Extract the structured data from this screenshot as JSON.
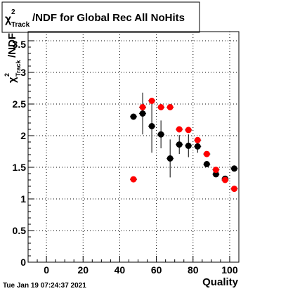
{
  "chart_data": {
    "type": "scatter",
    "title_main": "/NDF for Global Rec All NoHits",
    "title_chi": "χ",
    "title_sup": "2",
    "title_sub": "Track",
    "xlabel": "Quality",
    "ylabel_chi": "χ",
    "ylabel_sup": "2",
    "ylabel_sub": "Track",
    "ylabel_rest": "/NDF",
    "xlim": [
      -10,
      105
    ],
    "ylim": [
      0,
      3.5
    ],
    "x_ticks": [
      0,
      20,
      40,
      60,
      80,
      100
    ],
    "x_tick_labels": [
      "0",
      "20",
      "40",
      "60",
      "80",
      "100"
    ],
    "y_ticks": [
      0,
      0.5,
      1,
      1.5,
      2,
      2.5,
      3
    ],
    "y_tick_labels": [
      "0",
      "0.5",
      "1",
      "1.5",
      "2",
      "2.5",
      "3"
    ],
    "y_partial_label": "3.5",
    "grid": true,
    "series": [
      {
        "color": "#000000",
        "points": [
          {
            "x": 47.5,
            "y": 2.3,
            "ey": 0.0
          },
          {
            "x": 52.5,
            "y": 2.35,
            "ey": 0.33
          },
          {
            "x": 57.5,
            "y": 2.15,
            "ey": 0.42
          },
          {
            "x": 62.5,
            "y": 2.02,
            "ey": 0.22
          },
          {
            "x": 67.5,
            "y": 1.64,
            "ey": 0.3
          },
          {
            "x": 72.5,
            "y": 1.86,
            "ey": 0.15
          },
          {
            "x": 77.5,
            "y": 1.84,
            "ey": 0.18
          },
          {
            "x": 82.5,
            "y": 1.83,
            "ey": 0.1
          },
          {
            "x": 87.5,
            "y": 1.55,
            "ey": 0.04
          },
          {
            "x": 92.5,
            "y": 1.39,
            "ey": 0.03
          },
          {
            "x": 97.5,
            "y": 1.32,
            "ey": 0.03
          },
          {
            "x": 102.5,
            "y": 1.48,
            "ey": 0.03
          }
        ]
      },
      {
        "color": "#ff0000",
        "points": [
          {
            "x": 47.5,
            "y": 1.31,
            "ey": 0.0
          },
          {
            "x": 52.5,
            "y": 2.45,
            "ey": 0.05
          },
          {
            "x": 57.5,
            "y": 2.55,
            "ey": 0.04
          },
          {
            "x": 62.5,
            "y": 2.45,
            "ey": 0.03
          },
          {
            "x": 67.5,
            "y": 2.45,
            "ey": 0.03
          },
          {
            "x": 72.5,
            "y": 2.1,
            "ey": 0.03
          },
          {
            "x": 77.5,
            "y": 2.09,
            "ey": 0.03
          },
          {
            "x": 82.5,
            "y": 1.93,
            "ey": 0.02
          },
          {
            "x": 87.5,
            "y": 1.71,
            "ey": 0.02
          },
          {
            "x": 92.5,
            "y": 1.46,
            "ey": 0.02
          },
          {
            "x": 97.5,
            "y": 1.3,
            "ey": 0.02
          },
          {
            "x": 102.5,
            "y": 1.16,
            "ey": 0.02
          }
        ]
      }
    ]
  },
  "footer": {
    "timestamp": "Tue Jan 19 07:24:37 2021"
  }
}
